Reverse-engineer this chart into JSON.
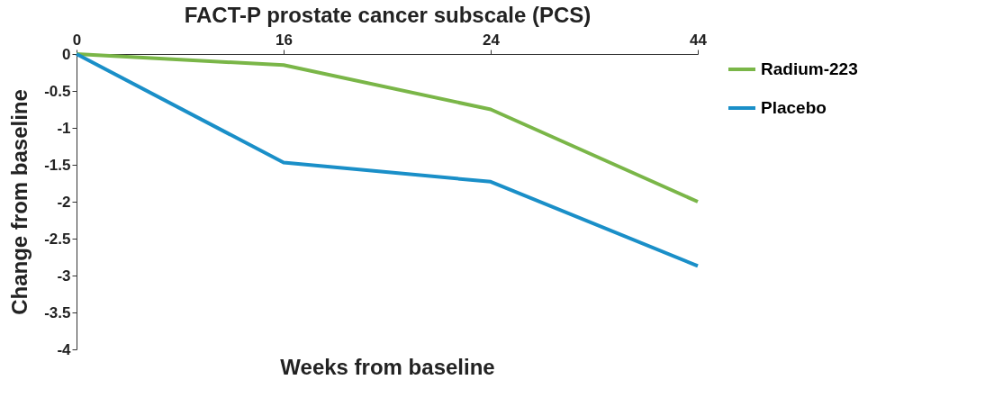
{
  "chart_data": {
    "type": "line",
    "title": "FACT-P prostate cancer subscale (PCS)",
    "xlabel": "Weeks from baseline",
    "ylabel": "Change from baseline",
    "categories": [
      "0",
      "16",
      "24",
      "44"
    ],
    "series": [
      {
        "name": "Radium-223",
        "color": "#7ab648",
        "values": [
          0,
          -0.15,
          -0.75,
          -2.0
        ]
      },
      {
        "name": "Placebo",
        "color": "#1a8fc8",
        "values": [
          0,
          -1.47,
          -1.73,
          -2.87
        ]
      }
    ],
    "ylim": [
      -4,
      0
    ],
    "yticks": [
      0,
      -0.5,
      -1,
      -1.5,
      -2,
      -2.5,
      -3,
      -3.5,
      -4
    ],
    "grid": false,
    "legend": "right",
    "marker": "none",
    "line_style": "solid"
  }
}
